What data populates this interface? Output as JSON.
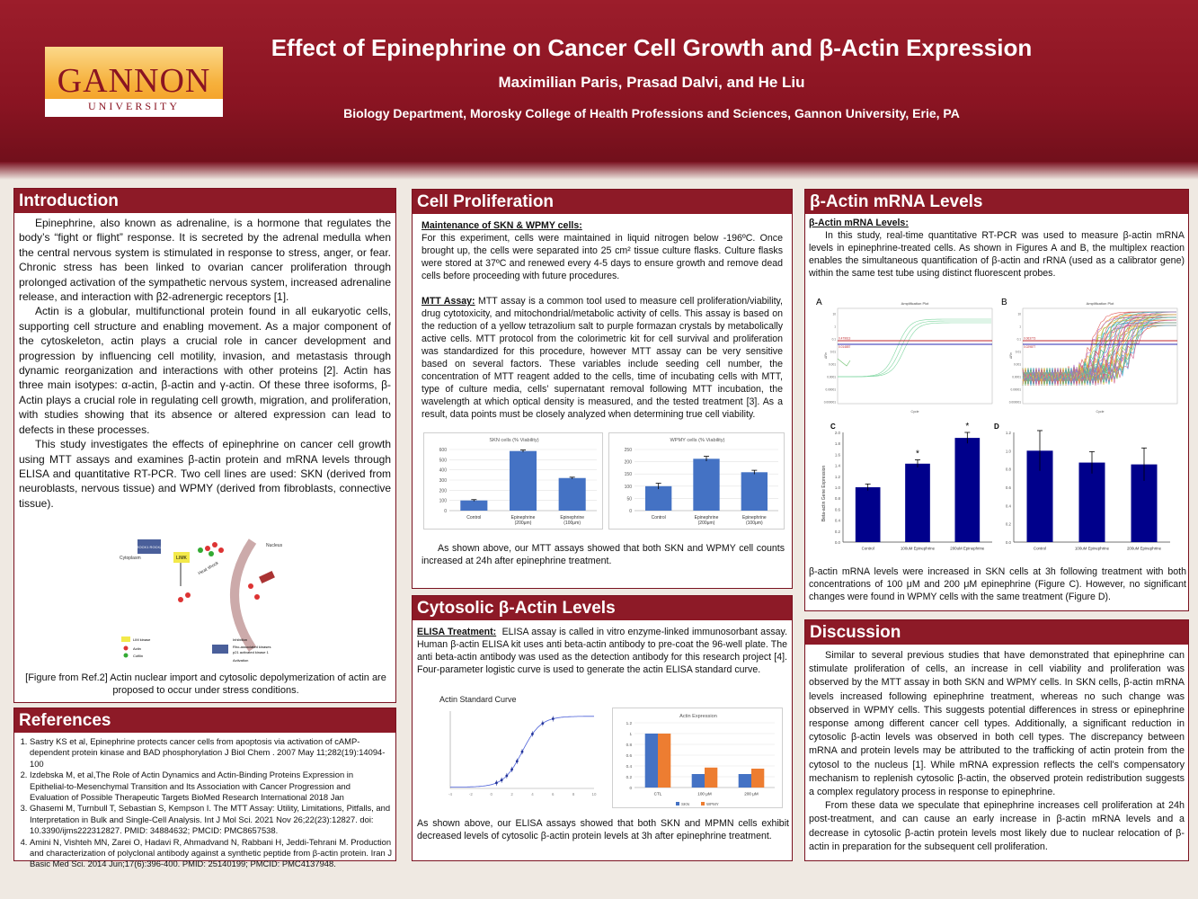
{
  "header": {
    "logo_name": "GANNON",
    "logo_sub": "UNIVERSITY",
    "title": "Effect of Epinephrine on Cancer Cell Growth and β-Actin Expression",
    "authors": "Maximilian Paris, Prasad Dalvi, and He Liu",
    "affiliation": "Biology Department, Morosky College of Health Professions and Sciences, Gannon University, Erie, PA"
  },
  "intro": {
    "heading": "Introduction",
    "p1": "Epinephrine, also known as adrenaline, is a hormone that regulates the body’s “fight or flight” response. It is secreted by the adrenal medulla when the central nervous system is stimulated in response to stress, anger, or fear. Chronic stress has been linked to ovarian cancer proliferation through prolonged activation of the sympathetic nervous system, increased adrenaline release, and interaction with β2-adrenergic receptors [1].",
    "p2": "Actin is a globular, multifunctional protein found in all eukaryotic cells, supporting cell structure and enabling movement. As a major component of the cytoskeleton, actin plays a crucial role in cancer development and progression by influencing cell motility, invasion, and metastasis through dynamic reorganization and interactions with other proteins [2]. Actin has three main isotypes: α-actin, β-actin and γ-actin. Of these three isoforms, β-Actin plays a crucial role in regulating cell growth, migration, and proliferation, with studies showing that its absence or altered expression can lead to defects in these processes.",
    "p3": "This study investigates the effects of epinephrine on cancer cell growth using MTT assays and examines β-actin protein and mRNA levels through ELISA and quantitative RT-PCR. Two cell lines are used: SKN (derived from neuroblasts, nervous tissue) and WPMY (derived from fibroblasts, connective tissue).",
    "fig_labels": {
      "rock": "ROCK1 ROCK2",
      "limk": "LIMK",
      "cytoplasm": "Cytoplasm",
      "nucleus": "Nucleus",
      "stress": "Heat shock",
      "leg_limk": "LIM kinase",
      "leg_actin": "Actin",
      "leg_cofilin": "Cofilin",
      "leg_inhib": "Inhibition",
      "leg_rho": "Rho-associated kinases",
      "leg_p21": "p21 activated kinase 1",
      "leg_act": "Activation"
    },
    "caption": "[Figure from Ref.2] Actin nuclear import and cytosolic depolymerization of actin are proposed to occur under stress conditions."
  },
  "references": {
    "heading": "References",
    "items": [
      "Sastry KS et al, Epinephrine protects cancer cells from apoptosis via activation of cAMP-dependent protein kinase and BAD phosphorylation J Biol Chem . 2007 May 11;282(19):14094-100",
      "Izdebska M, et al,The Role of Actin Dynamics and Actin-Binding Proteins Expression in Epithelial-to-Mesenchymal Transition and Its Association with Cancer Progression and Evaluation of Possible Therapeutic Targets BioMed Research International 2018 Jan",
      "Ghasemi M, Turnbull T, Sebastian S, Kempson I. The MTT Assay: Utility, Limitations, Pitfalls, and Interpretation in Bulk and Single-Cell Analysis. Int J Mol Sci. 2021 Nov 26;22(23):12827. doi: 10.3390/ijms222312827. PMID: 34884632; PMCID: PMC8657538.",
      "Amini N, Vishteh MN, Zarei O, Hadavi R, Ahmadvand N, Rabbani H, Jeddi-Tehrani M. Production and characterization of polyclonal antibody against a synthetic peptide from β-actin protein. Iran J Basic Med Sci. 2014 Jun;17(6):396-400. PMID: 25140199; PMCID: PMC4137948."
    ]
  },
  "proliferation": {
    "heading": "Cell Proliferation",
    "sub1": "Maintenance of SKN & WPMY cells:",
    "p1": "For this experiment, cells were maintained in liquid nitrogen below -196ºC. Once brought up, the cells were separated into 25 cm² tissue culture flasks. Culture flasks were stored at 37ºC and renewed every 4-5 days to ensure growth and remove dead cells before proceeding with future procedures.",
    "sub2": "MTT Assay:",
    "p2": "MTT assay is a common tool used to measure cell proliferation/viability, drug cytotoxicity, and mitochondrial/metabolic activity of cells.  This assay is based on the reduction of a yellow tetrazolium salt to purple formazan crystals by metabolically active cells. MTT protocol from the colorimetric kit for cell survival and proliferation was standardized for this procedure, however MTT assay can be very sensitive based on several factors. These variables include seeding cell number, the concentration of MTT reagent added to the cells, time of incubating cells with MTT, type of culture media, cells’ supernatant removal following MTT incubation, the wavelength at which optical density is measured, and the tested treatment [3]. As a result, data points must be closely analyzed when determining true cell viability.",
    "result": "As shown above, our MTT assays showed that both SKN and WPMY cell counts increased at 24h after epinephrine treatment."
  },
  "cytosolic": {
    "heading": "Cytosolic β-Actin Levels",
    "sub": "ELISA Treatment:",
    "p1": "ELISA assay is called in vitro enzyme-linked immunosorbant assay. Human β-actin ELISA kit uses anti beta-actin antibody to pre-coat the 96-well plate. The anti beta-actin antibody was used as the detection antibody for this research project [4]. Four-parameter logistic curve is used to generate the actin ELISA standard curve.",
    "result": "As shown above, our ELISA assays showed that both SKN and MPMN cells exhibit decreased levels of cytosolic β-actin protein levels at 3h after epinephrine treatment."
  },
  "mrna": {
    "heading": "β-Actin mRNA Levels",
    "sub": "β-Actin mRNA Levels:",
    "p1": "In this study, real-time quantitative RT-PCR was used to measure β-actin mRNA levels in epinephrine-treated cells. As shown in Figures A and B, the multiplex reaction enables the simultaneous quantification of β-actin and rRNA (used as a calibrator gene) within the same test tube using distinct fluorescent probes.",
    "result": "β-actin mRNA levels were increased in SKN cells at 3h following treatment with both concentrations of 100 μM and 200 μM epinephrine (Figure C). However, no significant changes were found in WPMY cells with the same treatment (Figure D).",
    "amp_title": "Amplification Plot",
    "amp_xlabel": "Cycle",
    "amp_ylabel": "ΔRn",
    "amp_yticks": [
      "10",
      "1",
      "0.1",
      "0.01",
      "0.001",
      "0.0001",
      "0.00001",
      "0.000001"
    ],
    "thresh_a": [
      "0.479613",
      "0.014857"
    ],
    "thresh_b": [
      "0.063773",
      "0.029877"
    ],
    "labels": {
      "A": "A",
      "B": "B",
      "C": "C",
      "D": "D",
      "star": "*"
    }
  },
  "discussion": {
    "heading": "Discussion",
    "p1": "Similar to several previous studies that have demonstrated that epinephrine can stimulate proliferation of cells, an increase in cell viability and proliferation was observed by the MTT assay in both SKN and WPMY cells. In SKN cells, β-actin mRNA levels increased following epinephrine treatment, whereas no such change was observed in WPMY cells. This suggests potential differences in stress or epinephrine response among different cancer cell types. Additionally, a significant reduction in cytosolic β-actin levels was observed in both cell types. The discrepancy between mRNA and protein levels may be attributed to the trafficking of actin protein from the cytosol to the nucleus [1]. While mRNA expression reflects the cell's compensatory mechanism to replenish cytosolic β-actin, the observed protein redistribution suggests a complex regulatory process in response to epinephrine.",
    "p2": "From these data we speculate that epinephrine increases cell proliferation at 24h post-treatment, and can cause an early increase in β-actin mRNA levels and a decrease in cytosolic β-actin protein levels most likely due to nuclear relocation of β-actin in preparation for the subsequent cell proliferation."
  },
  "colors": {
    "maroon": "#8d1a27",
    "bar_blue": "#4472c4",
    "bar_orange": "#ed7d31",
    "navy": "#00008b"
  },
  "chart_data": [
    {
      "id": "skn",
      "type": "bar",
      "title": "SKN cells (% Viability)",
      "categories": [
        "Control",
        "Epinephrine (200μm)",
        "Epinephrine (100μm)"
      ],
      "values": [
        100,
        585,
        320
      ],
      "errors": [
        8,
        10,
        8
      ],
      "ylim": [
        0,
        600
      ],
      "yticks": [
        0,
        100,
        200,
        300,
        400,
        500,
        600
      ]
    },
    {
      "id": "wpmy",
      "type": "bar",
      "title": "WPMY cells (% Viability)",
      "categories": [
        "Control",
        "Epinephrine (200μm)",
        "Epinephrine (100μm)"
      ],
      "values": [
        100,
        212,
        157
      ],
      "errors": [
        12,
        10,
        8
      ],
      "ylim": [
        0,
        250
      ],
      "yticks": [
        0,
        50,
        100,
        150,
        200,
        250
      ]
    },
    {
      "id": "std",
      "type": "line",
      "title": "Actin Standard Curve",
      "x": [
        0.5,
        1,
        1.5,
        2,
        2.5,
        3,
        4,
        5,
        6
      ],
      "xlim": [
        -4,
        10
      ],
      "ylim": [
        0,
        3
      ],
      "xticks": [
        -4,
        -2,
        0,
        2,
        4,
        6,
        8,
        10
      ]
    },
    {
      "id": "elisa",
      "type": "bar",
      "title": "Actin Expression",
      "categories": [
        "CTL",
        "100 µM",
        "200 µM"
      ],
      "series": [
        {
          "name": "SKN",
          "values": [
            1.0,
            0.25,
            0.25
          ]
        },
        {
          "name": "WPMY",
          "values": [
            1.0,
            0.37,
            0.35
          ]
        }
      ],
      "ylim": [
        0,
        1.2
      ],
      "yticks": [
        0,
        0.2,
        0.4,
        0.6,
        0.8,
        1,
        1.2
      ]
    },
    {
      "id": "c",
      "type": "bar",
      "title": "C",
      "ylabel": "Beta-actin Gene Expression",
      "categories": [
        "Control",
        "100uM Epinephrine",
        "200uM Epinephrine"
      ],
      "values": [
        1.0,
        1.43,
        1.9
      ],
      "errors": [
        0.06,
        0.07,
        0.1
      ],
      "ylim": [
        0,
        2.0
      ],
      "yticks": [
        0,
        0.2,
        0.4,
        0.6,
        0.8,
        1.0,
        1.2,
        1.4,
        1.6,
        1.8,
        2.0
      ]
    },
    {
      "id": "d",
      "type": "bar",
      "title": "D",
      "categories": [
        "Control",
        "100uM Epinephrine",
        "200uM Epinephrine"
      ],
      "values": [
        1.0,
        0.87,
        0.85
      ],
      "errors": [
        0.22,
        0.12,
        0.18
      ],
      "ylim": [
        0,
        1.2
      ],
      "yticks": [
        0,
        0.2,
        0.4,
        0.6,
        0.8,
        1.0,
        1.2
      ]
    }
  ]
}
